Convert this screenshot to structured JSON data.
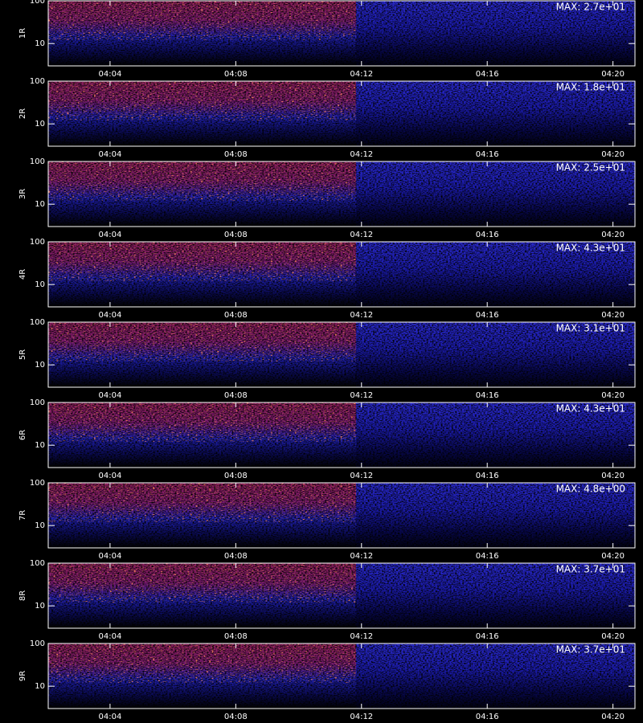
{
  "chart_data": [
    {
      "type": "spectrogram",
      "ylabel": "1R",
      "annotation": "MAX: 2.7e+01",
      "ylog": true,
      "ylim": [
        3,
        100
      ],
      "yticks": [
        10,
        100
      ],
      "xlim": [
        "04:02:02",
        "04:20:42"
      ],
      "xticks": [
        "04:04",
        "04:08",
        "04:12",
        "04:16",
        "04:20"
      ]
    },
    {
      "type": "spectrogram",
      "ylabel": "2R",
      "annotation": "MAX: 1.8e+01",
      "ylog": true,
      "ylim": [
        3,
        100
      ],
      "yticks": [
        10,
        100
      ],
      "xlim": [
        "04:02:02",
        "04:20:42"
      ],
      "xticks": [
        "04:04",
        "04:08",
        "04:12",
        "04:16",
        "04:20"
      ]
    },
    {
      "type": "spectrogram",
      "ylabel": "3R",
      "annotation": "MAX: 2.5e+01",
      "ylog": true,
      "ylim": [
        3,
        100
      ],
      "yticks": [
        10,
        100
      ],
      "xlim": [
        "04:02:02",
        "04:20:42"
      ],
      "xticks": [
        "04:04",
        "04:08",
        "04:12",
        "04:16",
        "04:20"
      ]
    },
    {
      "type": "spectrogram",
      "ylabel": "4R",
      "annotation": "MAX: 4.3e+01",
      "ylog": true,
      "ylim": [
        3,
        100
      ],
      "yticks": [
        10,
        100
      ],
      "xlim": [
        "04:02:02",
        "04:20:42"
      ],
      "xticks": [
        "04:04",
        "04:08",
        "04:12",
        "04:16",
        "04:20"
      ]
    },
    {
      "type": "spectrogram",
      "ylabel": "5R",
      "annotation": "MAX: 3.1e+01",
      "ylog": true,
      "ylim": [
        3,
        100
      ],
      "yticks": [
        10,
        100
      ],
      "xlim": [
        "04:02:02",
        "04:20:42"
      ],
      "xticks": [
        "04:04",
        "04:08",
        "04:12",
        "04:16",
        "04:20"
      ]
    },
    {
      "type": "spectrogram",
      "ylabel": "6R",
      "annotation": "MAX: 4.3e+01",
      "ylog": true,
      "ylim": [
        3,
        100
      ],
      "yticks": [
        10,
        100
      ],
      "xlim": [
        "04:02:02",
        "04:20:42"
      ],
      "xticks": [
        "04:04",
        "04:08",
        "04:12",
        "04:16",
        "04:20"
      ]
    },
    {
      "type": "spectrogram",
      "ylabel": "7R",
      "annotation": "MAX: 4.8e+00",
      "ylog": true,
      "ylim": [
        3,
        100
      ],
      "yticks": [
        10,
        100
      ],
      "xlim": [
        "04:02:02",
        "04:20:42"
      ],
      "xticks": [
        "04:04",
        "04:08",
        "04:12",
        "04:16",
        "04:20"
      ]
    },
    {
      "type": "spectrogram",
      "ylabel": "8R",
      "annotation": "MAX: 3.7e+01",
      "ylog": true,
      "ylim": [
        3,
        100
      ],
      "yticks": [
        10,
        100
      ],
      "xlim": [
        "04:02:02",
        "04:20:42"
      ],
      "xticks": [
        "04:04",
        "04:08",
        "04:12",
        "04:16",
        "04:20"
      ]
    },
    {
      "type": "spectrogram",
      "ylabel": "9R",
      "annotation": "MAX: 3.7e+01",
      "ylog": true,
      "ylim": [
        3,
        100
      ],
      "yticks": [
        10,
        100
      ],
      "xlim": [
        "04:02:02",
        "04:20:42"
      ],
      "xticks": [
        "04:04",
        "04:08",
        "04:12",
        "04:16",
        "04:20"
      ]
    }
  ]
}
